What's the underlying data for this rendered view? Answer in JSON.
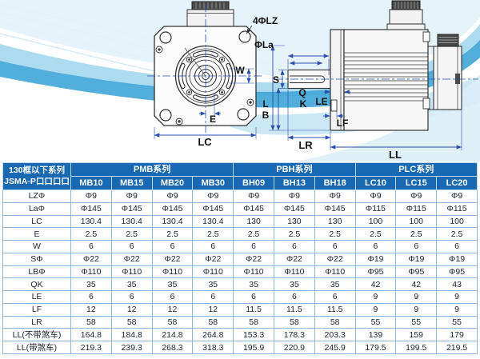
{
  "drawing": {
    "front_view": {
      "holes_label": "4ΦLZ",
      "flange_dia_label": "ΦLa",
      "w_label": "W",
      "e_label": "E",
      "lc_label": "LC"
    },
    "side_view": {
      "s_label": "S",
      "q_label": "Q",
      "k_label": "K",
      "l_label": "L",
      "b_label": "B",
      "le_label": "LE",
      "lf_label": "LF",
      "lr_label": "LR",
      "ll_label": "LL"
    }
  },
  "table": {
    "corner": {
      "line1": "130框以下系列",
      "line2": "JSMA-P口口口口"
    },
    "groups": [
      {
        "label": "PMB系列",
        "span": 4
      },
      {
        "label": "PBH系列",
        "span": 3
      },
      {
        "label": "PLC系列",
        "span": 3
      }
    ],
    "models": [
      "MB10",
      "MB15",
      "MB20",
      "MB30",
      "BH09",
      "BH13",
      "BH18",
      "LC10",
      "LC15",
      "LC20"
    ],
    "rows": [
      {
        "label": "LZΦ",
        "values": [
          "Φ9",
          "Φ9",
          "Φ9",
          "Φ9",
          "Φ9",
          "Φ9",
          "Φ9",
          "Φ9",
          "Φ9",
          "Φ9"
        ]
      },
      {
        "label": "LaΦ",
        "values": [
          "Φ145",
          "Φ145",
          "Φ145",
          "Φ145",
          "Φ145",
          "Φ145",
          "Φ145",
          "Φ115",
          "Φ115",
          "Φ115"
        ]
      },
      {
        "label": "LC",
        "values": [
          "130.4",
          "130.4",
          "130.4",
          "130.4",
          "130",
          "130",
          "130",
          "100",
          "100",
          "100"
        ]
      },
      {
        "label": "E",
        "values": [
          "2.5",
          "2.5",
          "2.5",
          "2.5",
          "2.5",
          "2.5",
          "2.5",
          "2.5",
          "2.5",
          "2.5"
        ]
      },
      {
        "label": "W",
        "values": [
          "6",
          "6",
          "6",
          "6",
          "6",
          "6",
          "6",
          "6",
          "6",
          "6"
        ]
      },
      {
        "label": "SΦ",
        "values": [
          "Φ22",
          "Φ22",
          "Φ22",
          "Φ22",
          "Φ22",
          "Φ22",
          "Φ22",
          "Φ19",
          "Φ19",
          "Φ19"
        ]
      },
      {
        "label": "LBΦ",
        "values": [
          "Φ110",
          "Φ110",
          "Φ110",
          "Φ110",
          "Φ110",
          "Φ110",
          "Φ110",
          "Φ95",
          "Φ95",
          "Φ95"
        ]
      },
      {
        "label": "QK",
        "values": [
          "35",
          "35",
          "35",
          "35",
          "35",
          "35",
          "35",
          "42",
          "42",
          "43"
        ]
      },
      {
        "label": "LE",
        "values": [
          "6",
          "6",
          "6",
          "6",
          "6",
          "6",
          "6",
          "9",
          "9",
          "9"
        ]
      },
      {
        "label": "LF",
        "values": [
          "12",
          "12",
          "12",
          "12",
          "11.5",
          "11.5",
          "11.5",
          "9",
          "9",
          "9"
        ]
      },
      {
        "label": "LR",
        "values": [
          "58",
          "58",
          "58",
          "58",
          "58",
          "58",
          "58",
          "55",
          "55",
          "55"
        ]
      },
      {
        "label": "LL(不带煞车)",
        "values": [
          "164.8",
          "184.8",
          "214.8",
          "264.8",
          "153.3",
          "178.3",
          "203.3",
          "139",
          "159",
          "179"
        ]
      },
      {
        "label": "LL(带煞车)",
        "values": [
          "219.3",
          "239.3",
          "268.3",
          "318.3",
          "195.9",
          "220.9",
          "245.9",
          "179.5",
          "199.5",
          "219.5"
        ]
      }
    ]
  },
  "colors": {
    "header_blue": "#1769b4",
    "grid_blue": "#8fb6dc",
    "wave_dark": "#3fa5d6",
    "wave_mid": "#a9d9ee",
    "wave_light": "#d9edf8",
    "dimension_blue": "#2a4db0",
    "line_dark": "#333333"
  }
}
